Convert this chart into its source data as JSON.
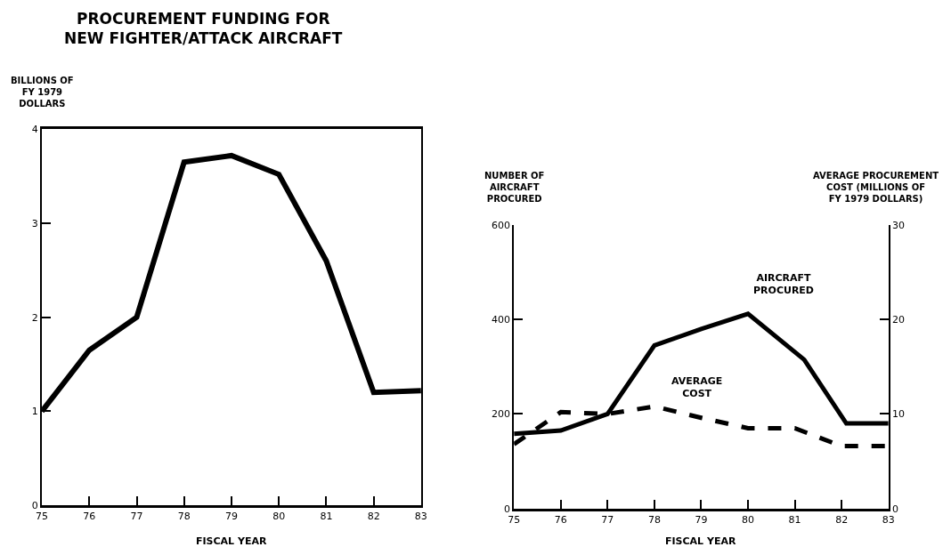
{
  "chart_data": [
    {
      "type": "line",
      "title": "PROCUREMENT FUNDING FOR\nNEW FIGHTER/ATTACK AIRCRAFT",
      "xlabel": "FISCAL YEAR",
      "ylabel": "BILLIONS OF\nFY 1979\nDOLLARS",
      "x": [
        75,
        76,
        77,
        78,
        79,
        80,
        81,
        82,
        83
      ],
      "series": [
        {
          "color": "#000000",
          "values": [
            1.0,
            1.65,
            2.0,
            3.65,
            3.72,
            3.52,
            2.6,
            1.2,
            1.22
          ]
        }
      ],
      "xlim": [
        75,
        83
      ],
      "xticks": [
        75,
        76,
        77,
        78,
        79,
        80,
        81,
        82,
        83
      ],
      "ylim": [
        0,
        4
      ],
      "yticks": [
        0,
        1,
        2,
        3,
        4
      ],
      "line_style": "solid"
    },
    {
      "type": "line",
      "xlabel": "FISCAL YEAR",
      "ylabel": "NUMBER OF\nAIRCRAFT\nPROCURED",
      "y2label": "AVERAGE PROCUREMENT\nCOST (MILLIONS OF\nFY 1979 DOLLARS)",
      "series": [
        {
          "name": "AIRCRAFT\nPROCURED",
          "color": "#000000",
          "x": [
            75,
            76,
            77,
            78,
            79,
            80,
            81.2,
            82.1,
            83
          ],
          "values": [
            158,
            165,
            200,
            345,
            380,
            412,
            315,
            180,
            180
          ],
          "line_style": "solid"
        },
        {
          "name": "AVERAGE\nCOST",
          "color": "#000000",
          "axis": "y2",
          "x": [
            75,
            76,
            77,
            78,
            79,
            80,
            81,
            82,
            83
          ],
          "values": [
            6.8,
            10.2,
            10.0,
            10.8,
            9.6,
            8.5,
            8.5,
            6.6,
            6.6
          ],
          "line_style": "dashed"
        }
      ],
      "xlim": [
        75,
        83
      ],
      "xticks": [
        75,
        76,
        77,
        78,
        79,
        80,
        81,
        82,
        83
      ],
      "ylim": [
        0,
        600
      ],
      "yticks": [
        0,
        200,
        400,
        600
      ],
      "y2lim": [
        0,
        30
      ],
      "y2ticks": [
        0,
        10,
        20,
        30
      ]
    }
  ]
}
